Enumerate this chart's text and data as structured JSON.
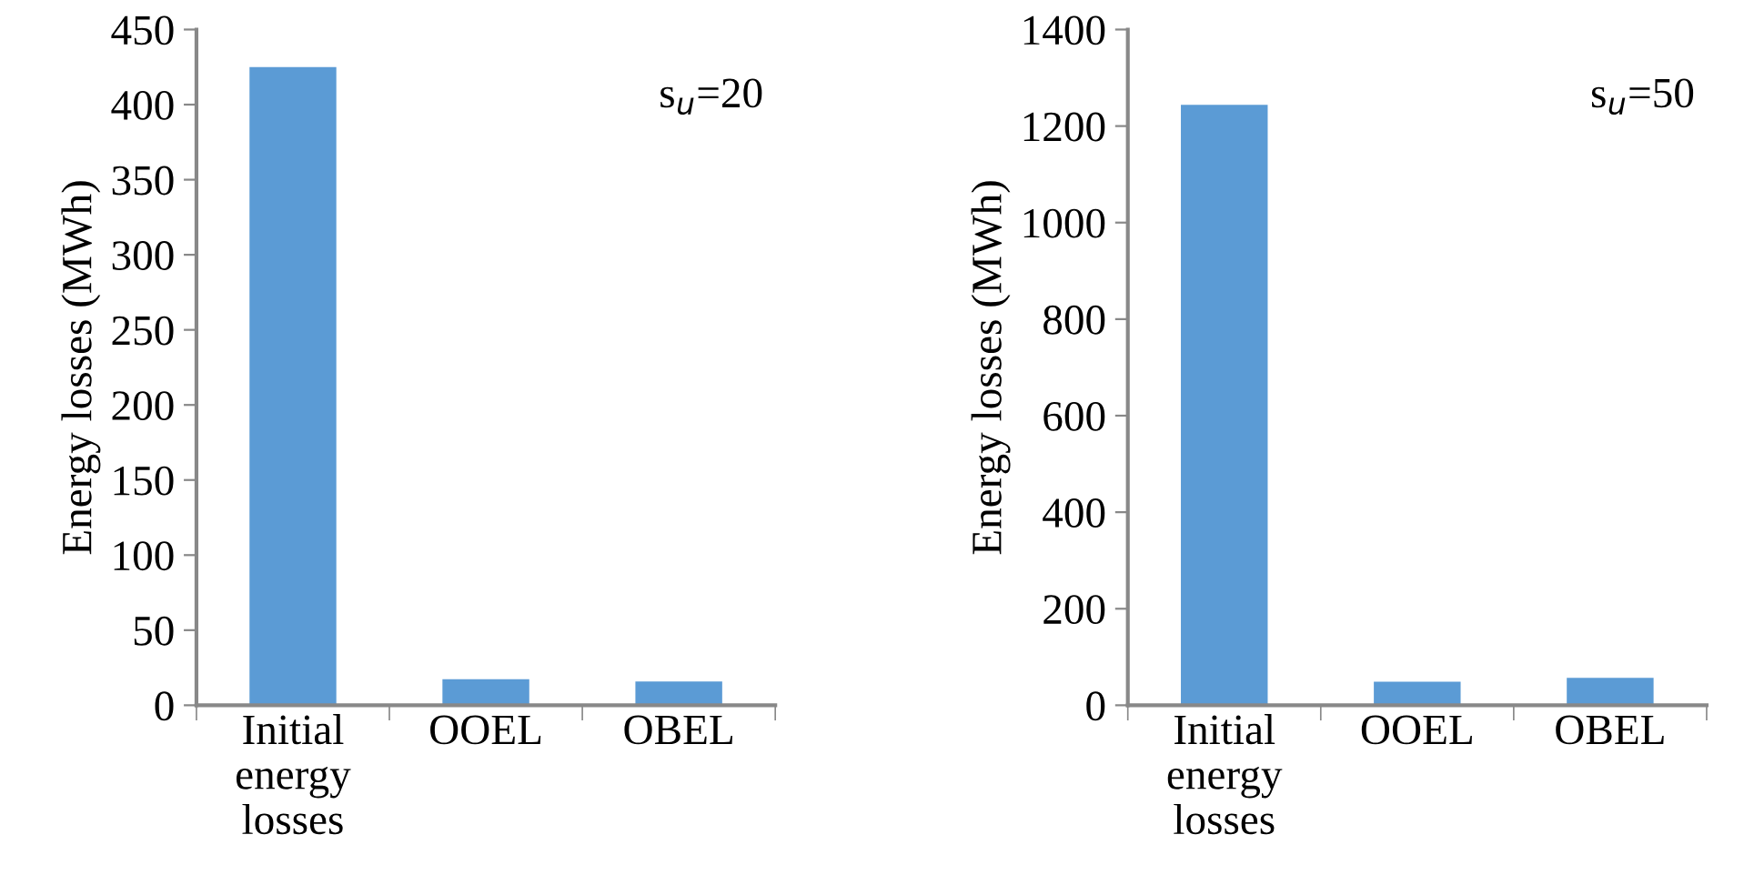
{
  "chart_data": [
    {
      "type": "bar",
      "categories": [
        "Initial\nenergy\nlosses",
        "OOEL",
        "OBEL"
      ],
      "values": [
        425,
        17.4,
        15.8
      ],
      "color": "#5b9bd5",
      "ylabel": "Energy losses (MWh)",
      "ylim": [
        0,
        450
      ],
      "yticks": [
        0,
        50,
        100,
        150,
        200,
        250,
        300,
        350,
        400,
        450
      ],
      "grid": false,
      "legend": false,
      "annotations": [
        {
          "text": "s$_{u}$=20"
        }
      ]
    },
    {
      "type": "bar",
      "categories": [
        "Initial\nenergy\nlosses",
        "OOEL",
        "OBEL"
      ],
      "values": [
        1244,
        49,
        57
      ],
      "color": "#5b9bd5",
      "ylabel": "Energy losses (MWh)",
      "ylim": [
        0,
        1400
      ],
      "yticks": [
        0,
        200,
        400,
        600,
        800,
        1000,
        1200,
        1400
      ],
      "grid": false,
      "legend": false,
      "annotations": [
        {
          "text": "s$_{u}$=50"
        }
      ]
    }
  ]
}
